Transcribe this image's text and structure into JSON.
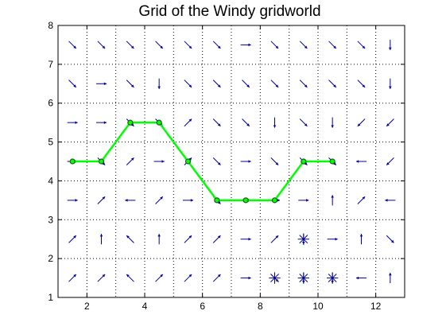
{
  "chart_data": {
    "type": "line",
    "title": "Grid of the Windy gridworld",
    "xlabel": "",
    "ylabel": "",
    "xlim": [
      1,
      13
    ],
    "ylim": [
      1,
      8
    ],
    "grid": true,
    "grid_style": "dotted",
    "x_ticks": [
      "2",
      "4",
      "6",
      "8",
      "10",
      "12"
    ],
    "y_ticks": [
      "1",
      "2",
      "3",
      "4",
      "5",
      "6",
      "7",
      "8"
    ],
    "colors": {
      "path": "#00ff00",
      "marker_edge": "#1a5e1a",
      "arrows": "#0000a0"
    },
    "series": [
      {
        "x": [
          1.5,
          2.5,
          3.5,
          4.5,
          5.5,
          6.5,
          7.5,
          8.5,
          9.5,
          10.5
        ],
        "y": [
          4.5,
          4.5,
          5.5,
          5.5,
          4.5,
          3.5,
          3.5,
          3.5,
          4.5,
          4.5
        ]
      }
    ],
    "arrow_directions": [
      [
        "NE",
        "NE",
        "NW",
        "NE",
        "NE",
        "NE",
        "E",
        "SE",
        "S",
        "S",
        "W",
        "N"
      ],
      [
        "NE",
        "N",
        "NW",
        "N",
        "NE",
        "NE",
        "E",
        "NE",
        "S",
        "E",
        "N",
        "SE"
      ],
      [
        "E",
        "NE",
        "W",
        "NE",
        "E",
        "SE",
        "E",
        "E",
        "E",
        "N",
        "NE",
        "W"
      ],
      [
        "E",
        "SE",
        "NE",
        "E",
        "NE",
        "SE",
        "E",
        "SE",
        "SE",
        "SE",
        "W",
        "SW"
      ],
      [
        "E",
        "E",
        "SE",
        "SE",
        "NE",
        "SE",
        "SE",
        "S",
        "SE",
        "S",
        "SW",
        "SW"
      ],
      [
        "SE",
        "E",
        "SE",
        "S",
        "SE",
        "SE",
        "SE",
        "SE",
        "SE",
        "SE",
        "SE",
        "S"
      ],
      [
        "SE",
        "SE",
        "SE",
        "SE",
        "SE",
        "SE",
        "E",
        "SE",
        "SE",
        "SE",
        "SE",
        "S"
      ]
    ],
    "multi_arrow_cells": [
      {
        "x": 8.5,
        "y": 1.5
      },
      {
        "x": 9.5,
        "y": 1.5
      },
      {
        "x": 10.5,
        "y": 1.5
      },
      {
        "x": 9.5,
        "y": 2.5
      }
    ]
  }
}
